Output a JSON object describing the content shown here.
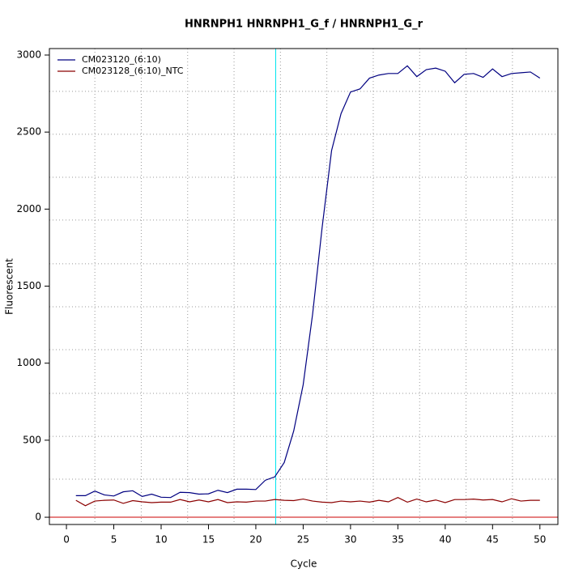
{
  "chart_data": {
    "type": "line",
    "title": "HNRNPH1  HNRNPH1_G_f / HNRNPH1_G_r",
    "x_label": "Cycle",
    "y_label": "Fluorescent",
    "x": [
      1,
      2,
      3,
      4,
      5,
      6,
      7,
      8,
      9,
      10,
      11,
      12,
      13,
      14,
      15,
      16,
      17,
      18,
      19,
      20,
      21,
      22,
      23,
      24,
      25,
      26,
      27,
      28,
      29,
      30,
      31,
      32,
      33,
      34,
      35,
      36,
      37,
      38,
      39,
      40,
      41,
      42,
      43,
      44,
      45,
      46,
      47,
      48,
      49,
      50
    ],
    "series": [
      {
        "name": "CM023120_(6:10)",
        "color": "#000080",
        "values": [
          140,
          140,
          170,
          145,
          138,
          165,
          172,
          135,
          150,
          130,
          128,
          162,
          160,
          150,
          152,
          175,
          160,
          182,
          182,
          180,
          240,
          262,
          355,
          560,
          860,
          1320,
          1880,
          2380,
          2620,
          2760,
          2780,
          2850,
          2870,
          2880,
          2880,
          2930,
          2860,
          2905,
          2915,
          2895,
          2820,
          2875,
          2880,
          2855,
          2910,
          2860,
          2880,
          2885,
          2890,
          2850
        ]
      },
      {
        "name": "CM023128_(6:10)_NTC",
        "color": "#8b0000",
        "values": [
          110,
          75,
          105,
          110,
          112,
          90,
          108,
          100,
          95,
          98,
          98,
          115,
          100,
          112,
          100,
          115,
          95,
          100,
          98,
          105,
          105,
          115,
          110,
          108,
          118,
          105,
          98,
          95,
          105,
          100,
          105,
          98,
          110,
          100,
          128,
          98,
          118,
          100,
          112,
          95,
          115,
          115,
          118,
          112,
          115,
          100,
          120,
          105,
          110,
          110
        ]
      }
    ],
    "xlim": [
      -1.8,
      51.9
    ],
    "ylim": [
      -47,
      3042
    ],
    "xticks": [
      0,
      5,
      10,
      15,
      20,
      25,
      30,
      35,
      40,
      45,
      50
    ],
    "yticks": [
      0,
      500,
      1000,
      1500,
      2000,
      2500,
      3000
    ],
    "xgrid": [
      3.0,
      7.9,
      12.8,
      17.7,
      22.6,
      27.5,
      32.4,
      37.3,
      42.2,
      47.1
    ],
    "ygrid": [
      247,
      525,
      804,
      1088,
      1366,
      1645,
      1929,
      2207,
      2486,
      2764
    ],
    "threshold_x": 22.1,
    "threshold_color": "#00e5ee",
    "hline": 0,
    "hline_color": "#cc0000",
    "legend": "top-left"
  }
}
